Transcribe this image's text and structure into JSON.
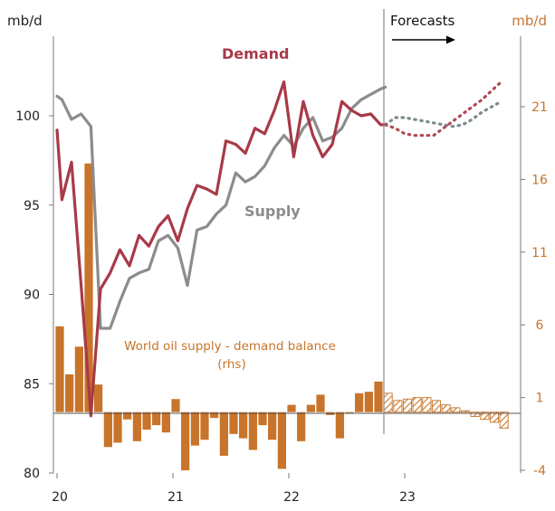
{
  "chart_data": {
    "type": "line",
    "title": "",
    "xlabel": "",
    "left_axis_unit": "mb/d",
    "right_axis_unit": "mb/d",
    "forecast_label": "Forecasts",
    "demand_label": "Demand",
    "supply_label": "Supply",
    "balance_label_line1": "World oil supply - demand balance",
    "balance_label_line2": "(rhs)",
    "x_ticks": [
      "20",
      "21",
      "22",
      "23"
    ],
    "y_left_ticks": [
      "100",
      "95",
      "90",
      "85",
      "80"
    ],
    "y_right_ticks": [
      "21",
      "16",
      "11",
      "6",
      "1",
      "-4"
    ],
    "ylim_left": [
      80,
      102.5
    ],
    "ylim_right": [
      -4,
      24
    ],
    "x_start": 2020.0,
    "forecast_start": 2022.83,
    "colors": {
      "demand": "#a83a48",
      "supply": "#8c8c8c",
      "forecast_demand": "#b04a55",
      "forecast_supply": "#7d8c8c",
      "balance": "#c8742a",
      "axis_right": "#c8742a"
    },
    "series": [
      {
        "name": "Demand",
        "x": [
          2020.0,
          2020.042,
          2020.125,
          2020.208,
          2020.292,
          2020.375,
          2020.458,
          2020.542,
          2020.625,
          2020.708,
          2020.792,
          2020.875,
          2020.958,
          2021.042,
          2021.125,
          2021.208,
          2021.292,
          2021.375,
          2021.458,
          2021.542,
          2021.625,
          2021.708,
          2021.792,
          2021.875,
          2021.958,
          2022.042,
          2022.125,
          2022.208,
          2022.292,
          2022.375,
          2022.458,
          2022.542,
          2022.625,
          2022.708,
          2022.792,
          2022.833
        ],
        "values": [
          99.2,
          95.3,
          97.4,
          90.5,
          83.2,
          90.3,
          91.2,
          92.5,
          91.6,
          93.3,
          92.7,
          93.8,
          94.4,
          93.0,
          94.8,
          96.1,
          95.9,
          95.6,
          98.6,
          98.4,
          97.9,
          99.3,
          99.0,
          100.3,
          101.9,
          97.7,
          100.8,
          98.9,
          97.7,
          98.4,
          100.8,
          100.3,
          100.0,
          100.1,
          99.5,
          99.5
        ]
      },
      {
        "name": "Supply",
        "x": [
          2020.0,
          2020.042,
          2020.125,
          2020.208,
          2020.292,
          2020.375,
          2020.458,
          2020.542,
          2020.625,
          2020.708,
          2020.792,
          2020.875,
          2020.958,
          2021.042,
          2021.125,
          2021.208,
          2021.292,
          2021.375,
          2021.458,
          2021.542,
          2021.625,
          2021.708,
          2021.792,
          2021.875,
          2021.958,
          2022.042,
          2022.125,
          2022.208,
          2022.292,
          2022.375,
          2022.458,
          2022.542,
          2022.625,
          2022.708,
          2022.792,
          2022.833
        ],
        "values": [
          101.1,
          100.9,
          99.8,
          100.1,
          99.4,
          88.1,
          88.1,
          89.6,
          90.9,
          91.2,
          91.4,
          93.0,
          93.3,
          92.6,
          90.5,
          93.6,
          93.8,
          94.5,
          95.0,
          96.8,
          96.3,
          96.6,
          97.2,
          98.2,
          98.9,
          98.3,
          99.3,
          99.9,
          98.6,
          98.8,
          99.3,
          100.4,
          100.9,
          101.2,
          101.5,
          101.6
        ]
      },
      {
        "name": "Demand forecast",
        "x": [
          2022.833,
          2022.917,
          2023.0,
          2023.083,
          2023.167,
          2023.25,
          2023.333,
          2023.417,
          2023.5,
          2023.583,
          2023.667,
          2023.75,
          2023.833
        ],
        "values": [
          99.5,
          99.3,
          99.0,
          98.9,
          98.9,
          98.9,
          99.3,
          99.7,
          100.1,
          100.5,
          100.9,
          101.4,
          101.9
        ]
      },
      {
        "name": "Supply forecast",
        "x": [
          2022.833,
          2022.917,
          2023.0,
          2023.083,
          2023.167,
          2023.25,
          2023.333,
          2023.417,
          2023.5,
          2023.583,
          2023.667,
          2023.75,
          2023.833
        ],
        "values": [
          99.5,
          99.9,
          99.9,
          99.8,
          99.7,
          99.6,
          99.5,
          99.4,
          99.5,
          99.8,
          100.2,
          100.5,
          100.8
        ]
      }
    ],
    "balance": {
      "name": "World oil supply - demand balance",
      "axis": "right",
      "x": [
        2020.0,
        2020.083,
        2020.167,
        2020.25,
        2020.333,
        2020.417,
        2020.5,
        2020.583,
        2020.667,
        2020.75,
        2020.833,
        2020.917,
        2021.0,
        2021.083,
        2021.167,
        2021.25,
        2021.333,
        2021.417,
        2021.5,
        2021.583,
        2021.667,
        2021.75,
        2021.833,
        2021.917,
        2022.0,
        2022.083,
        2022.167,
        2022.25,
        2022.333,
        2022.417,
        2022.5,
        2022.583,
        2022.667,
        2022.75
      ],
      "values": [
        5.9,
        2.6,
        4.5,
        17.1,
        1.9,
        -2.4,
        -2.1,
        -0.5,
        -2.0,
        -1.2,
        -0.9,
        -1.4,
        0.9,
        -4.0,
        -2.3,
        -1.9,
        -0.4,
        -3.0,
        -1.5,
        -1.8,
        -2.6,
        -0.9,
        -1.9,
        -3.9,
        0.5,
        -2.0,
        0.5,
        1.2,
        -0.2,
        -1.8,
        0.0,
        1.3,
        1.4,
        2.1
      ],
      "forecast_x": [
        2022.833,
        2022.917,
        2023.0,
        2023.083,
        2023.167,
        2023.25,
        2023.333,
        2023.417,
        2023.5,
        2023.583,
        2023.667,
        2023.75,
        2023.833
      ],
      "forecast_values": [
        1.3,
        0.8,
        0.9,
        1.0,
        1.0,
        0.8,
        0.5,
        0.3,
        0.1,
        -0.3,
        -0.5,
        -0.7,
        -1.1
      ]
    }
  }
}
